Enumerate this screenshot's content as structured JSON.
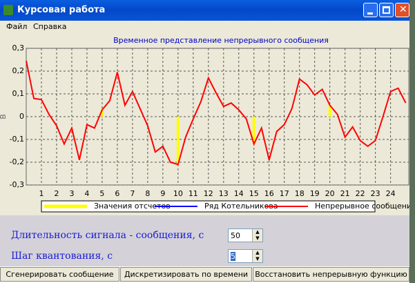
{
  "window": {
    "title": "Курсовая работа"
  },
  "menu": [
    "Файл",
    "Справка"
  ],
  "chart_data": {
    "type": "line",
    "title": "Временное представление непрерывного сообщения",
    "ylabel": "В",
    "xlim": [
      0,
      25.2
    ],
    "ylim": [
      -0.3,
      0.3
    ],
    "xticks": [
      1,
      2,
      3,
      4,
      5,
      6,
      7,
      8,
      9,
      10,
      11,
      12,
      13,
      14,
      15,
      16,
      17,
      18,
      19,
      20,
      21,
      22,
      23,
      24
    ],
    "yticks": [
      {
        "value": -0.3,
        "label": "-0,3"
      },
      {
        "value": -0.2,
        "label": "-0,2"
      },
      {
        "value": -0.1,
        "label": "-0,1"
      },
      0,
      {
        "value": 0.1,
        "label": "0,1"
      },
      {
        "value": 0.2,
        "label": "0,2"
      },
      {
        "value": 0.3,
        "label": "0,3"
      }
    ],
    "grid": true,
    "series": [
      {
        "name": "Значения отсчетов",
        "type": "stem",
        "color": "#ffff00",
        "x": [
          5,
          10,
          15,
          20
        ],
        "values": [
          0.03,
          -0.21,
          -0.12,
          0.05
        ]
      },
      {
        "name": "Ряд Котельникова",
        "type": "line",
        "color": "#0000ff",
        "x": [],
        "values": []
      },
      {
        "name": "Непрерывное сообщение",
        "type": "line",
        "color": "#ff0000",
        "x": [
          0,
          0.5,
          1,
          1.5,
          2,
          2.5,
          3,
          3.5,
          4,
          4.5,
          5,
          5.5,
          6,
          6.5,
          7,
          7.5,
          8,
          8.5,
          9,
          9.5,
          10,
          10.5,
          11,
          11.5,
          12,
          12.5,
          13,
          13.5,
          14,
          14.5,
          15,
          15.5,
          16,
          16.5,
          17,
          17.5,
          18,
          18.5,
          19,
          19.5,
          20,
          20.5,
          21,
          21.5,
          22,
          22.5,
          23,
          23.5,
          24,
          24.5,
          25
        ],
        "values": [
          0.245,
          0.08,
          0.075,
          0.01,
          -0.04,
          -0.12,
          -0.05,
          -0.19,
          -0.035,
          -0.05,
          0.03,
          0.07,
          0.195,
          0.05,
          0.11,
          0.035,
          -0.04,
          -0.155,
          -0.13,
          -0.2,
          -0.21,
          -0.09,
          -0.01,
          0.065,
          0.17,
          0.105,
          0.045,
          0.06,
          0.03,
          -0.01,
          -0.12,
          -0.05,
          -0.19,
          -0.065,
          -0.035,
          0.035,
          0.165,
          0.14,
          0.095,
          0.12,
          0.05,
          0.01,
          -0.09,
          -0.045,
          -0.105,
          -0.13,
          -0.105,
          0,
          0.11,
          0.125,
          0.06
        ]
      }
    ]
  },
  "form": {
    "fields": [
      {
        "label": "Длительность сигнала - сообщения, с",
        "value": "50"
      },
      {
        "label": "Шаг квантования, с",
        "value": "5"
      }
    ]
  },
  "buttons": [
    "Сгенерировать сообщение",
    "Дискретизировать по времени",
    "Восстановить непрерывную функцию"
  ]
}
